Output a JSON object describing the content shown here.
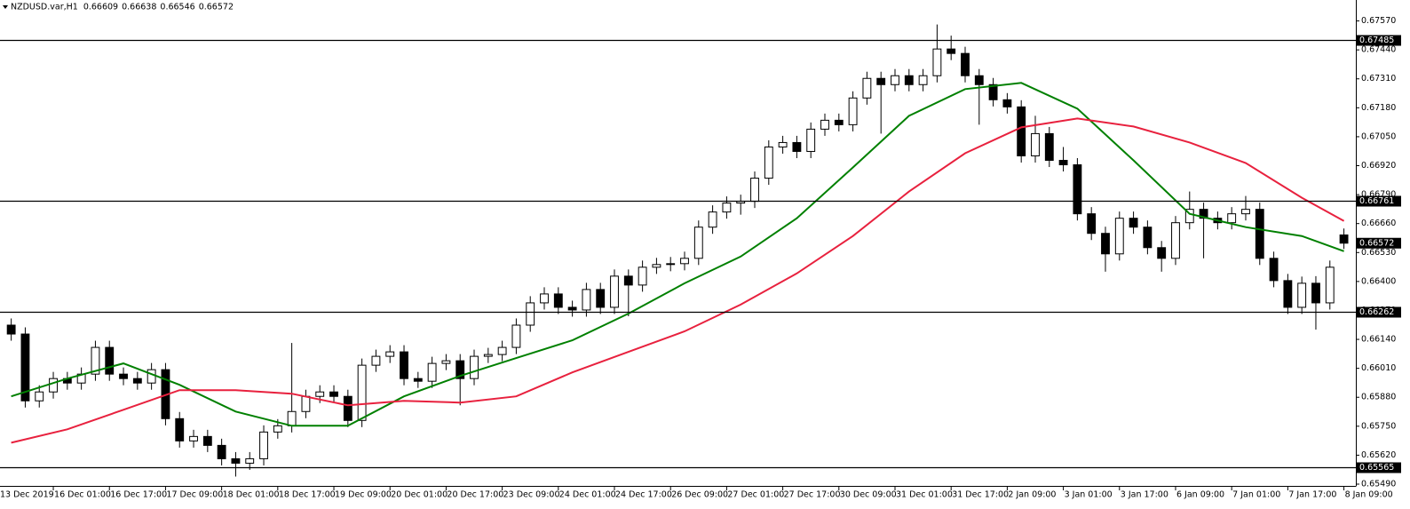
{
  "chart_data": {
    "type": "candlestick",
    "symbol": "NZDUSD.var,H1",
    "bull_color": "#ffffff",
    "bear_color": "#000000",
    "outline_color": "#000000",
    "level_color": "#000000",
    "xlim": [
      -0.8,
      95.85
    ],
    "ylim": [
      0.6549,
      0.67664
    ],
    "yticks": [
      {
        "value": 0.6757,
        "label": "0.67570"
      },
      {
        "value": 0.6744,
        "label": "0.67440"
      },
      {
        "value": 0.6731,
        "label": "0.67310"
      },
      {
        "value": 0.6718,
        "label": "0.67180"
      },
      {
        "value": 0.6705,
        "label": "0.67050"
      },
      {
        "value": 0.6692,
        "label": "0.66920"
      },
      {
        "value": 0.6679,
        "label": "0.66790"
      },
      {
        "value": 0.6666,
        "label": "0.66660"
      },
      {
        "value": 0.6653,
        "label": "0.66530"
      },
      {
        "value": 0.664,
        "label": "0.66400"
      },
      {
        "value": 0.6627,
        "label": "0.66270"
      },
      {
        "value": 0.6614,
        "label": "0.66140"
      },
      {
        "value": 0.6601,
        "label": "0.66010"
      },
      {
        "value": 0.6588,
        "label": "0.65880"
      },
      {
        "value": 0.6575,
        "label": "0.65750"
      },
      {
        "value": 0.6562,
        "label": "0.65620"
      },
      {
        "value": 0.6549,
        "label": "0.65490"
      }
    ],
    "xticks": [
      {
        "value": -1,
        "label": "13 Dec 2019"
      },
      {
        "value": 3,
        "label": "16 Dec 01:00"
      },
      {
        "value": 7,
        "label": "16 Dec 17:00"
      },
      {
        "value": 11,
        "label": "17 Dec 09:00"
      },
      {
        "value": 15,
        "label": "18 Dec 01:00"
      },
      {
        "value": 19,
        "label": "18 Dec 17:00"
      },
      {
        "value": 23,
        "label": "19 Dec 09:00"
      },
      {
        "value": 27,
        "label": "20 Dec 01:00"
      },
      {
        "value": 31,
        "label": "20 Dec 17:00"
      },
      {
        "value": 35,
        "label": "23 Dec 09:00"
      },
      {
        "value": 39,
        "label": "24 Dec 01:00"
      },
      {
        "value": 43,
        "label": "24 Dec 17:00"
      },
      {
        "value": 47,
        "label": "26 Dec 09:00"
      },
      {
        "value": 51,
        "label": "27 Dec 01:00"
      },
      {
        "value": 55,
        "label": "27 Dec 17:00"
      },
      {
        "value": 59,
        "label": "30 Dec 09:00"
      },
      {
        "value": 63,
        "label": "31 Dec 01:00"
      },
      {
        "value": 67,
        "label": "31 Dec 17:00"
      },
      {
        "value": 71,
        "label": "2 Jan 09:00"
      },
      {
        "value": 75,
        "label": "3 Jan 01:00"
      },
      {
        "value": 79,
        "label": "3 Jan 17:00"
      },
      {
        "value": 83,
        "label": "6 Jan 09:00"
      },
      {
        "value": 87,
        "label": "7 Jan 01:00"
      },
      {
        "value": 91,
        "label": "7 Jan 17:00"
      },
      {
        "value": 95,
        "label": "8 Jan 09:00"
      }
    ],
    "levels": [
      0.67485,
      0.66761,
      0.66262,
      0.65565
    ],
    "candles": [
      [
        0.66204,
        0.66234,
        0.66134,
        0.66164
      ],
      [
        0.66164,
        0.66194,
        0.65834,
        0.65864
      ],
      [
        0.65864,
        0.65934,
        0.65834,
        0.65904
      ],
      [
        0.65904,
        0.65994,
        0.65874,
        0.65964
      ],
      [
        0.65964,
        0.65994,
        0.65914,
        0.65944
      ],
      [
        0.65944,
        0.66014,
        0.65914,
        0.65984
      ],
      [
        0.65984,
        0.66134,
        0.65954,
        0.66104
      ],
      [
        0.66104,
        0.66134,
        0.65954,
        0.65984
      ],
      [
        0.65984,
        0.66014,
        0.65934,
        0.65964
      ],
      [
        0.65964,
        0.65994,
        0.65914,
        0.65944
      ],
      [
        0.65944,
        0.66034,
        0.65914,
        0.66004
      ],
      [
        0.66004,
        0.66034,
        0.65754,
        0.65784
      ],
      [
        0.65784,
        0.65814,
        0.65654,
        0.65684
      ],
      [
        0.65684,
        0.65734,
        0.65654,
        0.65704
      ],
      [
        0.65704,
        0.65734,
        0.65634,
        0.65664
      ],
      [
        0.65664,
        0.65694,
        0.65574,
        0.65604
      ],
      [
        0.65604,
        0.65634,
        0.65524,
        0.65584
      ],
      [
        0.65584,
        0.65634,
        0.65554,
        0.65604
      ],
      [
        0.65604,
        0.65754,
        0.65574,
        0.65724
      ],
      [
        0.65724,
        0.65782,
        0.65694,
        0.65752
      ],
      [
        0.65752,
        0.66124,
        0.65722,
        0.65816
      ],
      [
        0.65816,
        0.65914,
        0.65786,
        0.65884
      ],
      [
        0.65884,
        0.65934,
        0.65854,
        0.65904
      ],
      [
        0.65904,
        0.65934,
        0.65854,
        0.65884
      ],
      [
        0.65884,
        0.65914,
        0.65746,
        0.65776
      ],
      [
        0.65776,
        0.66054,
        0.65746,
        0.66024
      ],
      [
        0.66024,
        0.66094,
        0.65994,
        0.66064
      ],
      [
        0.66064,
        0.66114,
        0.66034,
        0.66084
      ],
      [
        0.66084,
        0.66114,
        0.65934,
        0.65964
      ],
      [
        0.65964,
        0.65994,
        0.65922,
        0.65952
      ],
      [
        0.65952,
        0.66062,
        0.65922,
        0.66032
      ],
      [
        0.66032,
        0.66074,
        0.66002,
        0.66044
      ],
      [
        0.66044,
        0.66074,
        0.65844,
        0.65964
      ],
      [
        0.65964,
        0.66094,
        0.65934,
        0.66064
      ],
      [
        0.66064,
        0.66102,
        0.66034,
        0.66072
      ],
      [
        0.66072,
        0.66134,
        0.66042,
        0.66104
      ],
      [
        0.66104,
        0.66234,
        0.66074,
        0.66204
      ],
      [
        0.66204,
        0.66334,
        0.66174,
        0.66304
      ],
      [
        0.66304,
        0.66374,
        0.66274,
        0.66344
      ],
      [
        0.66344,
        0.66374,
        0.66254,
        0.66284
      ],
      [
        0.66284,
        0.66314,
        0.66242,
        0.66272
      ],
      [
        0.66272,
        0.66394,
        0.66242,
        0.66364
      ],
      [
        0.66364,
        0.66394,
        0.66254,
        0.66284
      ],
      [
        0.66284,
        0.66454,
        0.66254,
        0.66424
      ],
      [
        0.66424,
        0.66454,
        0.66244,
        0.66384
      ],
      [
        0.66384,
        0.66494,
        0.66354,
        0.66464
      ],
      [
        0.66464,
        0.66506,
        0.66434,
        0.66476
      ],
      [
        0.66476,
        0.6651,
        0.66446,
        0.6648
      ],
      [
        0.6648,
        0.66534,
        0.6645,
        0.66504
      ],
      [
        0.66504,
        0.66674,
        0.66474,
        0.66644
      ],
      [
        0.66644,
        0.66742,
        0.66614,
        0.66712
      ],
      [
        0.66712,
        0.66782,
        0.66682,
        0.66752
      ],
      [
        0.66752,
        0.6679,
        0.667,
        0.6676
      ],
      [
        0.6676,
        0.66894,
        0.6673,
        0.66864
      ],
      [
        0.66864,
        0.67034,
        0.66834,
        0.67004
      ],
      [
        0.67004,
        0.67054,
        0.66974,
        0.67024
      ],
      [
        0.67024,
        0.67054,
        0.66954,
        0.66984
      ],
      [
        0.66984,
        0.67114,
        0.66954,
        0.67084
      ],
      [
        0.67084,
        0.67154,
        0.67054,
        0.67124
      ],
      [
        0.67124,
        0.67154,
        0.67074,
        0.67104
      ],
      [
        0.67104,
        0.67254,
        0.67074,
        0.67224
      ],
      [
        0.67224,
        0.67342,
        0.67194,
        0.67312
      ],
      [
        0.67312,
        0.67342,
        0.67064,
        0.67284
      ],
      [
        0.67284,
        0.67354,
        0.67254,
        0.67324
      ],
      [
        0.67324,
        0.67354,
        0.67254,
        0.67284
      ],
      [
        0.67284,
        0.67354,
        0.67254,
        0.67324
      ],
      [
        0.67324,
        0.67554,
        0.67294,
        0.67444
      ],
      [
        0.67444,
        0.67504,
        0.67394,
        0.67424
      ],
      [
        0.67424,
        0.67454,
        0.67294,
        0.67324
      ],
      [
        0.67324,
        0.67354,
        0.67104,
        0.67284
      ],
      [
        0.67284,
        0.67314,
        0.67186,
        0.67216
      ],
      [
        0.67216,
        0.67246,
        0.67154,
        0.67184
      ],
      [
        0.67184,
        0.67214,
        0.66934,
        0.66964
      ],
      [
        0.66964,
        0.67144,
        0.66934,
        0.67064
      ],
      [
        0.67064,
        0.67094,
        0.66914,
        0.66944
      ],
      [
        0.66944,
        0.67004,
        0.66894,
        0.66924
      ],
      [
        0.66924,
        0.66954,
        0.66674,
        0.66704
      ],
      [
        0.66704,
        0.66734,
        0.66586,
        0.66616
      ],
      [
        0.66616,
        0.66646,
        0.66444,
        0.66524
      ],
      [
        0.66524,
        0.66714,
        0.66494,
        0.66684
      ],
      [
        0.66684,
        0.66714,
        0.66614,
        0.66644
      ],
      [
        0.66644,
        0.66674,
        0.66522,
        0.66552
      ],
      [
        0.66552,
        0.66582,
        0.66444,
        0.66504
      ],
      [
        0.66504,
        0.66694,
        0.66474,
        0.66664
      ],
      [
        0.66664,
        0.66804,
        0.66634,
        0.66724
      ],
      [
        0.66724,
        0.66754,
        0.66504,
        0.66684
      ],
      [
        0.66684,
        0.66714,
        0.66634,
        0.66664
      ],
      [
        0.66664,
        0.66734,
        0.66634,
        0.66704
      ],
      [
        0.66704,
        0.66784,
        0.66674,
        0.66724
      ],
      [
        0.66724,
        0.66754,
        0.66474,
        0.66504
      ],
      [
        0.66504,
        0.66534,
        0.66374,
        0.66404
      ],
      [
        0.66404,
        0.66434,
        0.66254,
        0.66284
      ],
      [
        0.66284,
        0.66422,
        0.66254,
        0.66392
      ],
      [
        0.66392,
        0.66424,
        0.66184,
        0.66304
      ],
      [
        0.66304,
        0.66494,
        0.66274,
        0.66464
      ],
      [
        0.66609,
        0.66638,
        0.66546,
        0.66572
      ]
    ],
    "series": [
      {
        "color": "#008000",
        "x": [
          0,
          4,
          8,
          12,
          16,
          20,
          24,
          28,
          32,
          36,
          40,
          44,
          48,
          52,
          56,
          60,
          64,
          68,
          72,
          76,
          80,
          84,
          88,
          92,
          95
        ],
        "values": [
          0.65884,
          0.65964,
          0.66032,
          0.65936,
          0.65816,
          0.65752,
          0.65752,
          0.65884,
          0.65976,
          0.66056,
          0.66136,
          0.66256,
          0.66392,
          0.66512,
          0.66684,
          0.66912,
          0.67144,
          0.67264,
          0.67292,
          0.67176,
          0.66944,
          0.66704,
          0.66644,
          0.66604,
          0.66536
        ]
      },
      {
        "color": "#e8213e",
        "x": [
          0,
          4,
          8,
          12,
          16,
          20,
          24,
          28,
          32,
          36,
          40,
          44,
          48,
          52,
          56,
          60,
          64,
          68,
          72,
          76,
          80,
          84,
          88,
          92,
          95
        ],
        "values": [
          0.65676,
          0.65736,
          0.65824,
          0.65912,
          0.65912,
          0.65896,
          0.65844,
          0.65864,
          0.65856,
          0.65884,
          0.65992,
          0.66084,
          0.66176,
          0.66296,
          0.66436,
          0.66604,
          0.66804,
          0.66976,
          0.67092,
          0.67132,
          0.67096,
          0.67024,
          0.66932,
          0.66776,
          0.66672
        ]
      }
    ]
  }
}
